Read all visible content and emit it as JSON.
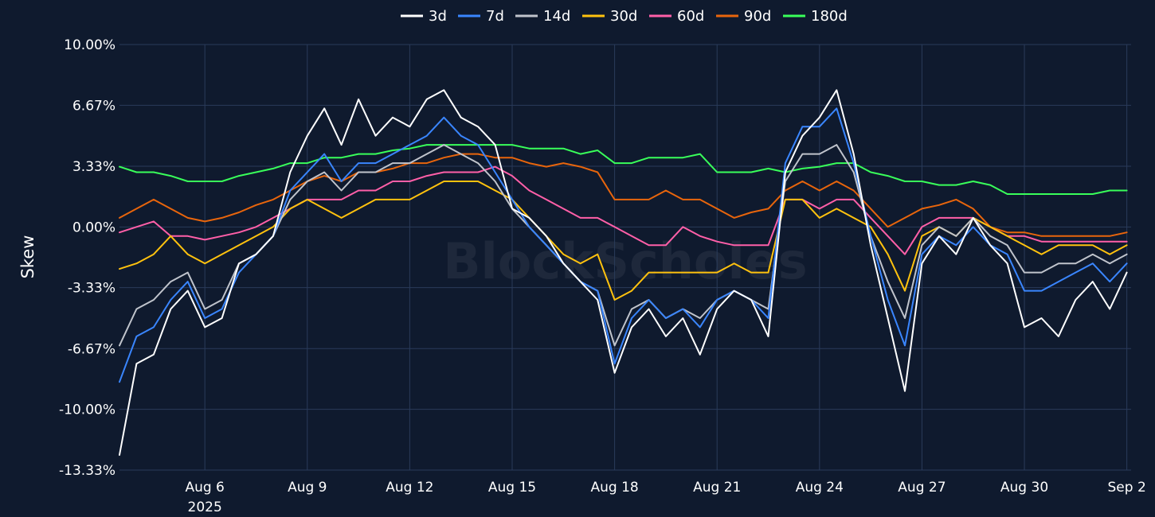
{
  "chart_data": {
    "type": "line",
    "ylabel": "Skew",
    "watermark": "BlockScholes",
    "ylim": [
      -13.33,
      10.0
    ],
    "yticks": [
      10.0,
      6.67,
      3.33,
      0.0,
      -3.33,
      -6.67,
      -10.0,
      -13.33
    ],
    "ytick_labels": [
      "10.00%",
      "6.67%",
      "3.33%",
      "0.00%",
      "-3.33%",
      "-6.67%",
      "-10.00%",
      "-13.33%"
    ],
    "xlim": [
      "2025-08-03T12:00",
      "2025-09-02T03:00"
    ],
    "xticks": [
      "2025-08-06",
      "2025-08-09",
      "2025-08-12",
      "2025-08-15",
      "2025-08-18",
      "2025-08-21",
      "2025-08-24",
      "2025-08-27",
      "2025-08-30",
      "2025-09-02"
    ],
    "xtick_labels": [
      "Aug 6",
      "Aug 9",
      "Aug 12",
      "Aug 15",
      "Aug 18",
      "Aug 21",
      "Aug 24",
      "Aug 27",
      "Aug 30",
      "Sep 2"
    ],
    "xtick_year_label": "2025",
    "grid": true,
    "legend_position": "top-center",
    "x": [
      "2025-08-03T12:00",
      "2025-08-04T00:00",
      "2025-08-04T12:00",
      "2025-08-05T00:00",
      "2025-08-05T12:00",
      "2025-08-06T00:00",
      "2025-08-06T12:00",
      "2025-08-07T00:00",
      "2025-08-07T12:00",
      "2025-08-08T00:00",
      "2025-08-08T12:00",
      "2025-08-09T00:00",
      "2025-08-09T12:00",
      "2025-08-10T00:00",
      "2025-08-10T12:00",
      "2025-08-11T00:00",
      "2025-08-11T12:00",
      "2025-08-12T00:00",
      "2025-08-12T12:00",
      "2025-08-13T00:00",
      "2025-08-13T12:00",
      "2025-08-14T00:00",
      "2025-08-14T12:00",
      "2025-08-15T00:00",
      "2025-08-15T12:00",
      "2025-08-16T00:00",
      "2025-08-16T12:00",
      "2025-08-17T00:00",
      "2025-08-17T12:00",
      "2025-08-18T00:00",
      "2025-08-18T12:00",
      "2025-08-19T00:00",
      "2025-08-19T12:00",
      "2025-08-20T00:00",
      "2025-08-20T12:00",
      "2025-08-21T00:00",
      "2025-08-21T12:00",
      "2025-08-22T00:00",
      "2025-08-22T12:00",
      "2025-08-23T00:00",
      "2025-08-23T12:00",
      "2025-08-24T00:00",
      "2025-08-24T12:00",
      "2025-08-25T00:00",
      "2025-08-25T12:00",
      "2025-08-26T00:00",
      "2025-08-26T12:00",
      "2025-08-27T00:00",
      "2025-08-27T12:00",
      "2025-08-28T00:00",
      "2025-08-28T12:00",
      "2025-08-29T00:00",
      "2025-08-29T12:00",
      "2025-08-30T00:00",
      "2025-08-30T12:00",
      "2025-08-31T00:00",
      "2025-08-31T12:00",
      "2025-09-01T00:00",
      "2025-09-01T12:00",
      "2025-09-02T00:00"
    ],
    "series": [
      {
        "name": "3d",
        "color": "#ffffff",
        "values": [
          -12.5,
          -7.5,
          -7.0,
          -4.5,
          -3.5,
          -5.5,
          -5.0,
          -2.0,
          -1.5,
          -0.5,
          3.0,
          5.0,
          6.5,
          4.5,
          7.0,
          5.0,
          6.0,
          5.5,
          7.0,
          7.5,
          6.0,
          5.5,
          4.5,
          1.0,
          0.5,
          -0.5,
          -2.0,
          -3.0,
          -4.0,
          -8.0,
          -5.5,
          -4.5,
          -6.0,
          -5.0,
          -7.0,
          -4.5,
          -3.5,
          -4.0,
          -6.0,
          3.0,
          5.0,
          6.0,
          7.5,
          4.0,
          -1.0,
          -5.0,
          -9.0,
          -2.0,
          -0.5,
          -1.5,
          0.5,
          -1.0,
          -2.0,
          -5.5,
          -5.0,
          -6.0,
          -4.0,
          -3.0,
          -4.5,
          -2.5
        ]
      },
      {
        "name": "7d",
        "color": "#3a86ff",
        "values": [
          -8.5,
          -6.0,
          -5.5,
          -4.0,
          -3.0,
          -5.0,
          -4.5,
          -2.5,
          -1.5,
          -0.5,
          2.0,
          3.0,
          4.0,
          2.5,
          3.5,
          3.5,
          4.0,
          4.5,
          5.0,
          6.0,
          5.0,
          4.5,
          3.0,
          1.5,
          0.0,
          -1.0,
          -2.0,
          -3.0,
          -3.5,
          -7.5,
          -5.0,
          -4.0,
          -5.0,
          -4.5,
          -5.5,
          -4.0,
          -3.5,
          -4.0,
          -5.0,
          3.5,
          5.5,
          5.5,
          6.5,
          3.5,
          -0.5,
          -4.0,
          -6.5,
          -1.5,
          -0.5,
          -1.0,
          0.0,
          -1.0,
          -1.5,
          -3.5,
          -3.5,
          -3.0,
          -2.5,
          -2.0,
          -3.0,
          -2.0
        ]
      },
      {
        "name": "14d",
        "color": "#c0c4cc",
        "values": [
          -6.5,
          -4.5,
          -4.0,
          -3.0,
          -2.5,
          -4.5,
          -4.0,
          -2.0,
          -1.5,
          -0.5,
          1.5,
          2.5,
          3.0,
          2.0,
          3.0,
          3.0,
          3.5,
          3.5,
          4.0,
          4.5,
          4.0,
          3.5,
          2.5,
          1.0,
          0.0,
          -1.0,
          -2.0,
          -3.0,
          -3.5,
          -6.5,
          -4.5,
          -4.0,
          -5.0,
          -4.5,
          -5.0,
          -4.0,
          -3.5,
          -4.0,
          -4.5,
          2.5,
          4.0,
          4.0,
          4.5,
          3.0,
          -0.5,
          -3.0,
          -5.0,
          -1.0,
          0.0,
          -0.5,
          0.5,
          -0.5,
          -1.0,
          -2.5,
          -2.5,
          -2.0,
          -2.0,
          -1.5,
          -2.0,
          -1.5
        ]
      },
      {
        "name": "30d",
        "color": "#ffc20e",
        "values": [
          -2.3,
          -2.0,
          -1.5,
          -0.5,
          -1.5,
          -2.0,
          -1.5,
          -1.0,
          -0.5,
          0.0,
          1.0,
          1.5,
          1.0,
          0.5,
          1.0,
          1.5,
          1.5,
          1.5,
          2.0,
          2.5,
          2.5,
          2.5,
          2.0,
          1.5,
          0.5,
          -0.5,
          -1.5,
          -2.0,
          -1.5,
          -4.0,
          -3.5,
          -2.5,
          -2.5,
          -2.5,
          -2.5,
          -2.5,
          -2.0,
          -2.5,
          -2.5,
          1.5,
          1.5,
          0.5,
          1.0,
          0.5,
          0.0,
          -1.5,
          -3.5,
          -0.5,
          0.0,
          -0.5,
          0.5,
          0.0,
          -0.5,
          -1.0,
          -1.5,
          -1.0,
          -1.0,
          -1.0,
          -1.5,
          -1.0
        ]
      },
      {
        "name": "60d",
        "color": "#ff5fa8",
        "values": [
          -0.3,
          0.0,
          0.3,
          -0.5,
          -0.5,
          -0.7,
          -0.5,
          -0.3,
          0.0,
          0.5,
          1.0,
          1.5,
          1.5,
          1.5,
          2.0,
          2.0,
          2.5,
          2.5,
          2.8,
          3.0,
          3.0,
          3.0,
          3.3,
          2.8,
          2.0,
          1.5,
          1.0,
          0.5,
          0.5,
          0.0,
          -0.5,
          -1.0,
          -1.0,
          0.0,
          -0.5,
          -0.8,
          -1.0,
          -1.0,
          -1.0,
          1.5,
          1.5,
          1.0,
          1.5,
          1.5,
          0.5,
          -0.5,
          -1.5,
          0.0,
          0.5,
          0.5,
          0.5,
          0.0,
          -0.5,
          -0.5,
          -0.8,
          -0.8,
          -0.8,
          -0.8,
          -0.8,
          -0.8
        ]
      },
      {
        "name": "90d",
        "color": "#e8650c",
        "values": [
          0.5,
          1.0,
          1.5,
          1.0,
          0.5,
          0.3,
          0.5,
          0.8,
          1.2,
          1.5,
          2.0,
          2.5,
          2.8,
          2.5,
          3.0,
          3.0,
          3.2,
          3.5,
          3.5,
          3.8,
          4.0,
          4.0,
          3.8,
          3.8,
          3.5,
          3.3,
          3.5,
          3.3,
          3.0,
          1.5,
          1.5,
          1.5,
          2.0,
          1.5,
          1.5,
          1.0,
          0.5,
          0.8,
          1.0,
          2.0,
          2.5,
          2.0,
          2.5,
          2.0,
          1.0,
          0.0,
          0.5,
          1.0,
          1.2,
          1.5,
          1.0,
          0.0,
          -0.3,
          -0.3,
          -0.5,
          -0.5,
          -0.5,
          -0.5,
          -0.5,
          -0.3
        ]
      },
      {
        "name": "180d",
        "color": "#39ff5a",
        "values": [
          3.3,
          3.0,
          3.0,
          2.8,
          2.5,
          2.5,
          2.5,
          2.8,
          3.0,
          3.2,
          3.5,
          3.5,
          3.8,
          3.8,
          4.0,
          4.0,
          4.2,
          4.3,
          4.5,
          4.5,
          4.5,
          4.5,
          4.5,
          4.5,
          4.3,
          4.3,
          4.3,
          4.0,
          4.2,
          3.5,
          3.5,
          3.8,
          3.8,
          3.8,
          4.0,
          3.0,
          3.0,
          3.0,
          3.2,
          3.0,
          3.2,
          3.3,
          3.5,
          3.5,
          3.0,
          2.8,
          2.5,
          2.5,
          2.3,
          2.3,
          2.5,
          2.3,
          1.8,
          1.8,
          1.8,
          1.8,
          1.8,
          1.8,
          2.0,
          2.0
        ]
      }
    ]
  }
}
